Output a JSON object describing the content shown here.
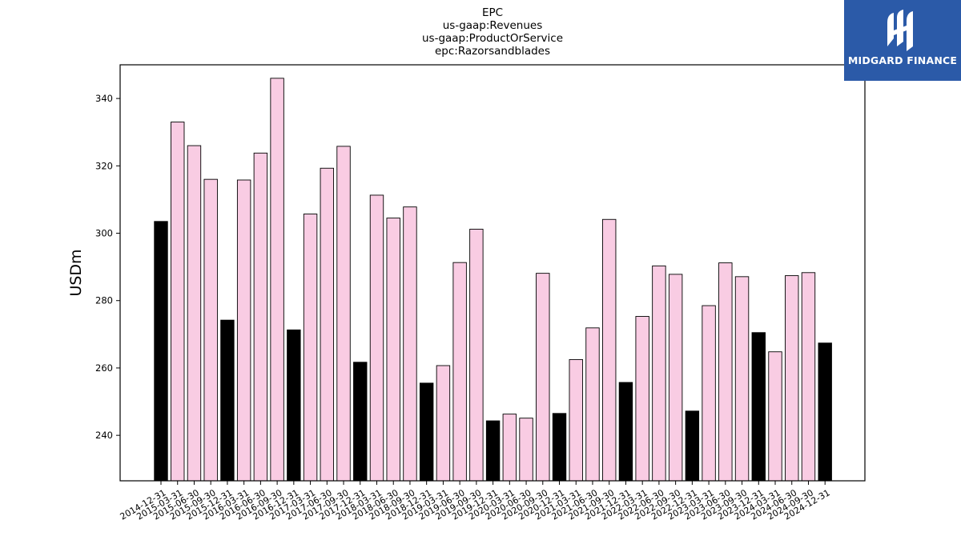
{
  "logo": {
    "text": "MIDGARD FINANCE"
  },
  "colors": {
    "annual": "#000000",
    "quarterly": "#f9cce3",
    "edge": "#000000",
    "logo_bg": "#2b5aa8"
  },
  "chart_data": {
    "type": "bar",
    "title_lines": [
      "EPC",
      "us-gaap:Revenues",
      "us-gaap:ProductOrService",
      "epc:Razorsandblades"
    ],
    "xlabel": "",
    "ylabel": "USDm",
    "ylim": [
      226.5,
      350
    ],
    "yticks": [
      240,
      260,
      280,
      300,
      320,
      340
    ],
    "grid": false,
    "legend": "none",
    "categories": [
      "2014-12-31",
      "2015-03-31",
      "2015-06-30",
      "2015-09-30",
      "2015-12-31",
      "2016-03-31",
      "2016-06-30",
      "2016-09-30",
      "2016-12-31",
      "2017-03-31",
      "2017-06-30",
      "2017-09-30",
      "2017-12-31",
      "2018-03-31",
      "2018-06-30",
      "2018-09-30",
      "2018-12-31",
      "2019-03-31",
      "2019-06-30",
      "2019-09-30",
      "2019-12-31",
      "2020-03-31",
      "2020-06-30",
      "2020-09-30",
      "2020-12-31",
      "2021-03-31",
      "2021-06-30",
      "2021-09-30",
      "2021-12-31",
      "2022-03-31",
      "2022-06-30",
      "2022-09-30",
      "2022-12-31",
      "2023-03-31",
      "2023-06-30",
      "2023-09-30",
      "2023-12-31",
      "2024-03-31",
      "2024-06-30",
      "2024-09-30",
      "2024-12-31"
    ],
    "values": [
      303.5,
      333,
      326,
      316,
      274.2,
      315.8,
      323.8,
      346,
      271.3,
      305.7,
      319.3,
      325.8,
      261.7,
      311.3,
      304.5,
      307.8,
      255.5,
      260.7,
      291.3,
      301.2,
      244.3,
      246.3,
      245.1,
      288.1,
      246.5,
      262.5,
      271.9,
      304.1,
      255.7,
      275.3,
      290.3,
      287.8,
      247.2,
      278.5,
      291.2,
      287.1,
      270.5,
      264.8,
      287.4,
      288.3,
      267.4
    ],
    "highlight": [
      true,
      false,
      false,
      false,
      true,
      false,
      false,
      false,
      true,
      false,
      false,
      false,
      true,
      false,
      false,
      false,
      true,
      false,
      false,
      false,
      true,
      false,
      false,
      false,
      true,
      false,
      false,
      false,
      true,
      false,
      false,
      false,
      true,
      false,
      false,
      false,
      true,
      false,
      false,
      false,
      true
    ]
  }
}
